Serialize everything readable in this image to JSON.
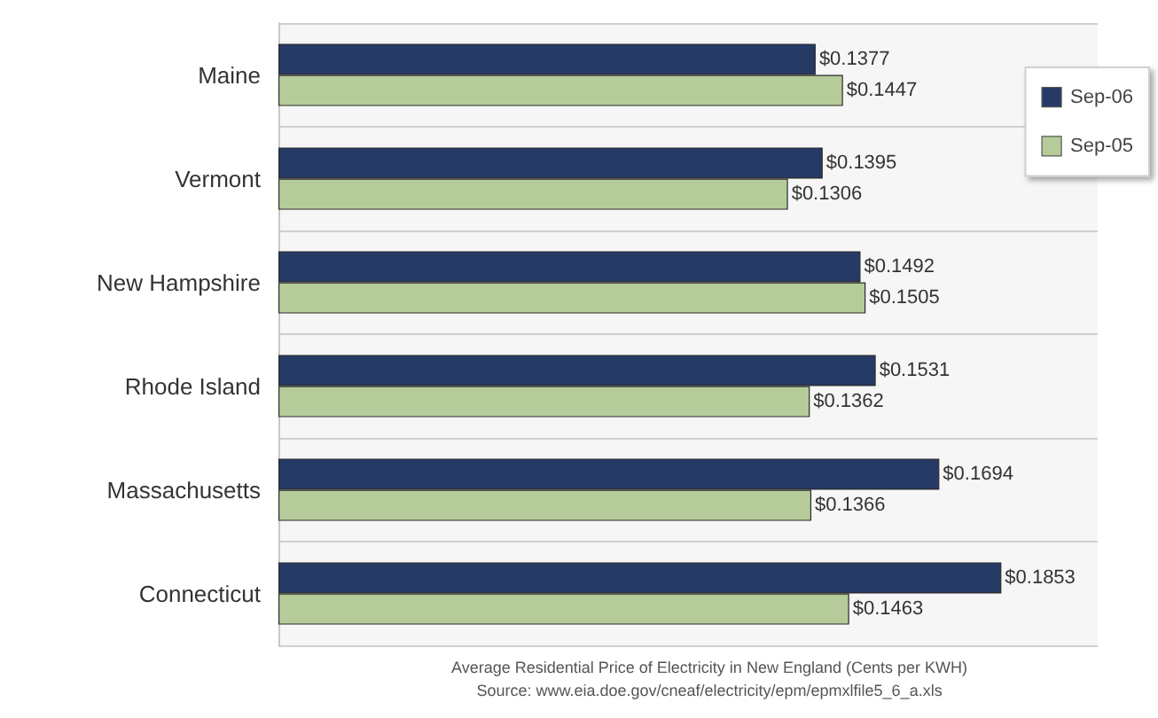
{
  "chart_data": {
    "type": "bar",
    "orientation": "horizontal",
    "categories": [
      "Maine",
      "Vermont",
      "New Hampshire",
      "Rhode Island",
      "Massachusetts",
      "Connecticut"
    ],
    "series": [
      {
        "name": "Sep-06",
        "color": "#263a66",
        "values": [
          0.1377,
          0.1395,
          0.1492,
          0.1531,
          0.1694,
          0.1853
        ],
        "value_labels": [
          "$0.1377",
          "$0.1395",
          "$0.1492",
          "$0.1531",
          "$0.1694",
          "$0.1853"
        ]
      },
      {
        "name": "Sep-05",
        "color": "#b5cc9a",
        "values": [
          0.1447,
          0.1306,
          0.1505,
          0.1362,
          0.1366,
          0.1463
        ],
        "value_labels": [
          "$0.1447",
          "$0.1306",
          "$0.1505",
          "$0.1362",
          "$0.1366",
          "$0.1463"
        ]
      }
    ],
    "legend": "top right",
    "grid": "y",
    "tick_labels": "y",
    "annotations": [
      "Average Residential Price of Electricity in New England (Cents per KWH)",
      "Source: www.eia.doe.gov/cneaf/electricity/epm/epmxlfile5_6_a.xls"
    ]
  }
}
